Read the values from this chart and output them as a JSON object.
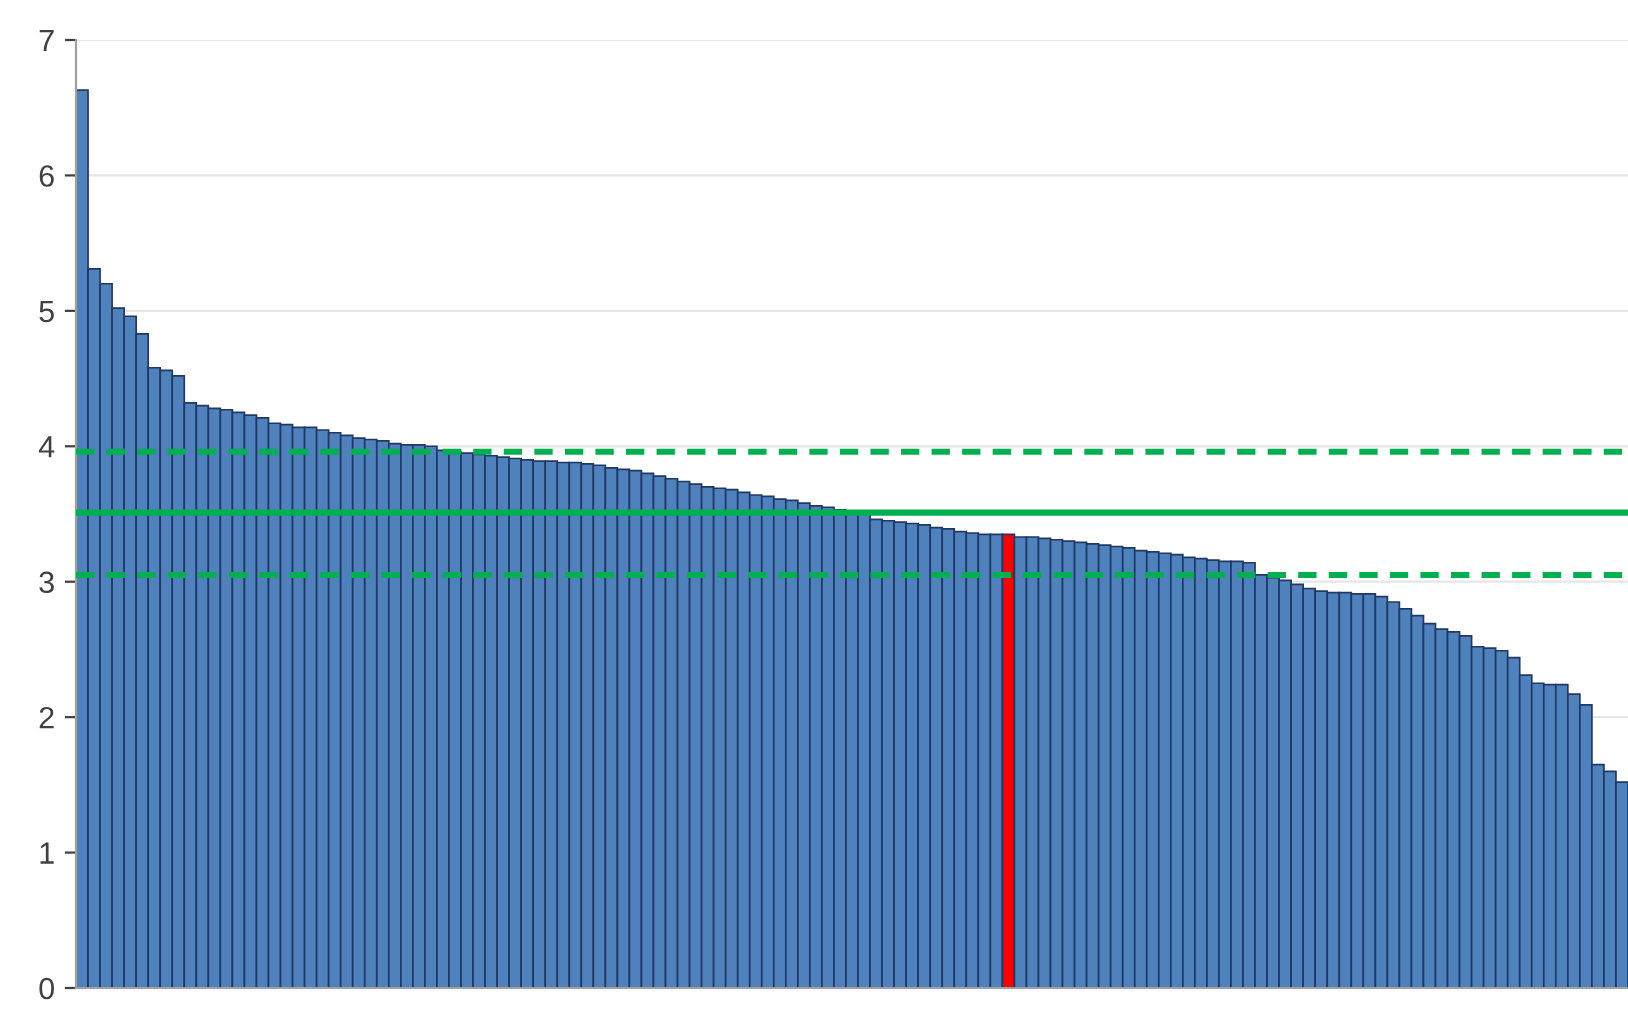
{
  "chart_data": {
    "type": "bar",
    "categories": [
      null,
      null,
      null,
      null,
      null,
      null,
      null,
      null,
      null,
      null,
      null,
      null,
      null,
      null,
      null,
      null,
      null,
      null,
      null,
      null,
      null,
      null,
      null,
      null,
      null,
      null,
      null,
      null,
      null,
      null,
      null,
      null,
      null,
      null,
      null,
      null,
      null,
      null,
      null,
      null,
      null,
      null,
      null,
      null,
      null,
      null,
      null,
      null,
      null,
      null,
      null,
      null,
      null,
      null,
      null,
      null,
      null,
      null,
      null,
      null,
      null,
      null,
      null,
      null,
      null,
      null,
      null,
      null,
      null,
      null,
      null,
      null,
      null,
      null,
      null,
      null,
      null,
      null,
      null,
      null,
      null,
      null,
      null,
      null,
      null,
      null,
      null,
      null,
      null,
      null,
      null,
      null,
      null,
      null,
      null,
      null,
      null,
      null,
      null,
      null,
      null,
      null,
      null,
      null,
      null,
      null,
      null,
      null,
      null,
      null,
      null,
      null,
      null,
      null,
      null,
      null,
      null,
      null,
      null,
      null,
      null,
      null,
      null,
      null,
      null,
      null,
      null,
      null,
      null
    ],
    "values": [
      6.63,
      5.31,
      5.2,
      5.02,
      4.96,
      4.83,
      4.58,
      4.56,
      4.52,
      4.32,
      4.3,
      4.28,
      4.27,
      4.25,
      4.23,
      4.21,
      4.17,
      4.16,
      4.14,
      4.14,
      4.12,
      4.1,
      4.08,
      4.06,
      4.05,
      4.04,
      4.02,
      4.01,
      4.01,
      4.0,
      3.97,
      3.96,
      3.95,
      3.94,
      3.93,
      3.92,
      3.91,
      3.9,
      3.89,
      3.89,
      3.88,
      3.88,
      3.87,
      3.86,
      3.84,
      3.83,
      3.82,
      3.8,
      3.78,
      3.76,
      3.74,
      3.72,
      3.7,
      3.69,
      3.68,
      3.66,
      3.64,
      3.63,
      3.61,
      3.6,
      3.58,
      3.56,
      3.55,
      3.53,
      3.52,
      3.5,
      3.46,
      3.45,
      3.44,
      3.43,
      3.42,
      3.4,
      3.39,
      3.37,
      3.36,
      3.35,
      3.35,
      3.35,
      3.33,
      3.33,
      3.32,
      3.31,
      3.3,
      3.29,
      3.28,
      3.27,
      3.26,
      3.25,
      3.23,
      3.22,
      3.21,
      3.2,
      3.18,
      3.17,
      3.16,
      3.15,
      3.15,
      3.14,
      3.05,
      3.03,
      3.01,
      2.98,
      2.95,
      2.93,
      2.92,
      2.92,
      2.91,
      2.91,
      2.89,
      2.85,
      2.8,
      2.75,
      2.69,
      2.65,
      2.63,
      2.6,
      2.52,
      2.51,
      2.49,
      2.44,
      2.31,
      2.25,
      2.24,
      2.24,
      2.17,
      2.09,
      1.65,
      1.6,
      1.52
    ],
    "colors": [
      "#4f81bd",
      "#4f81bd",
      "#4f81bd",
      "#4f81bd",
      "#4f81bd",
      "#4f81bd",
      "#4f81bd",
      "#4f81bd",
      "#4f81bd",
      "#4f81bd",
      "#4f81bd",
      "#4f81bd",
      "#4f81bd",
      "#4f81bd",
      "#4f81bd",
      "#4f81bd",
      "#4f81bd",
      "#4f81bd",
      "#4f81bd",
      "#4f81bd",
      "#4f81bd",
      "#4f81bd",
      "#4f81bd",
      "#4f81bd",
      "#4f81bd",
      "#4f81bd",
      "#4f81bd",
      "#4f81bd",
      "#4f81bd",
      "#4f81bd",
      "#4f81bd",
      "#4f81bd",
      "#4f81bd",
      "#4f81bd",
      "#4f81bd",
      "#4f81bd",
      "#4f81bd",
      "#4f81bd",
      "#4f81bd",
      "#4f81bd",
      "#4f81bd",
      "#4f81bd",
      "#4f81bd",
      "#4f81bd",
      "#4f81bd",
      "#4f81bd",
      "#4f81bd",
      "#4f81bd",
      "#4f81bd",
      "#4f81bd",
      "#4f81bd",
      "#4f81bd",
      "#4f81bd",
      "#4f81bd",
      "#4f81bd",
      "#4f81bd",
      "#4f81bd",
      "#4f81bd",
      "#4f81bd",
      "#4f81bd",
      "#4f81bd",
      "#4f81bd",
      "#4f81bd",
      "#4f81bd",
      "#4f81bd",
      "#4f81bd",
      "#4f81bd",
      "#4f81bd",
      "#4f81bd",
      "#4f81bd",
      "#4f81bd",
      "#4f81bd",
      "#4f81bd",
      "#4f81bd",
      "#4f81bd",
      "#4f81bd",
      "#4f81bd",
      "#ff0000",
      "#4f81bd",
      "#4f81bd",
      "#4f81bd",
      "#4f81bd",
      "#4f81bd",
      "#4f81bd",
      "#4f81bd",
      "#4f81bd",
      "#4f81bd",
      "#4f81bd",
      "#4f81bd",
      "#4f81bd",
      "#4f81bd",
      "#4f81bd",
      "#4f81bd",
      "#4f81bd",
      "#4f81bd",
      "#4f81bd",
      "#4f81bd",
      "#4f81bd",
      "#4f81bd",
      "#4f81bd",
      "#4f81bd",
      "#4f81bd",
      "#4f81bd",
      "#4f81bd",
      "#4f81bd",
      "#4f81bd",
      "#4f81bd",
      "#4f81bd",
      "#4f81bd",
      "#4f81bd",
      "#4f81bd",
      "#4f81bd",
      "#4f81bd",
      "#4f81bd",
      "#4f81bd",
      "#4f81bd",
      "#4f81bd",
      "#4f81bd",
      "#4f81bd",
      "#4f81bd",
      "#4f81bd",
      "#4f81bd",
      "#4f81bd",
      "#4f81bd",
      "#4f81bd",
      "#4f81bd",
      "#4f81bd",
      "#4f81bd",
      "#4f81bd"
    ],
    "ylim": [
      0,
      7
    ],
    "yticks": [
      0,
      1,
      2,
      3,
      4,
      5,
      6,
      7
    ],
    "grid": "y",
    "tick_labels": "y",
    "ref_lines": [
      {
        "axis": "y",
        "value": 3.96,
        "color": "#00b050",
        "line_style": "dashed"
      },
      {
        "axis": "y",
        "value": 3.51,
        "color": "#00b050",
        "line_style": "solid"
      },
      {
        "axis": "y",
        "value": 3.05,
        "color": "#00b050",
        "line_style": "dashed"
      }
    ]
  }
}
